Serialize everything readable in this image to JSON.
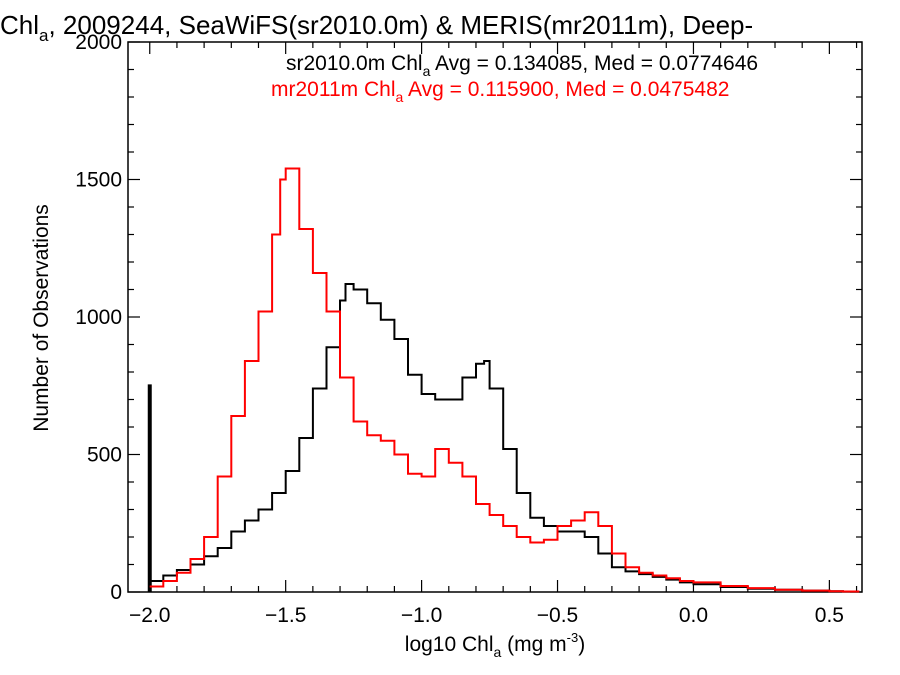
{
  "chart_data": {
    "type": "line",
    "title": {
      "pre": "Chl",
      "sub": "a",
      "post": ", 2009244, SeaWiFS(sr2010.0m) & MERIS(mr2011m), Deep-"
    },
    "xlabel": {
      "pre": "log10 Chl",
      "sub": "a",
      "post": " (mg m",
      "sup": "-3",
      "end": ")"
    },
    "ylabel": "Number of Observations",
    "xlim": [
      -2.08,
      0.62
    ],
    "ylim": [
      0,
      2000
    ],
    "xticks": [
      -2.0,
      -1.5,
      -1.0,
      -0.5,
      0.0,
      0.5
    ],
    "xtick_labels": [
      "−2.0",
      "−1.5",
      "−1.0",
      "−0.5",
      "0.0",
      "0.5"
    ],
    "yticks": [
      0,
      500,
      1000,
      1500,
      2000
    ],
    "ytick_labels": [
      "0",
      "500",
      "1000",
      "1500",
      "2000"
    ],
    "annotations": [
      {
        "pre": "sr2010.0m Chl",
        "sub": "a",
        "post": " Avg = 0.134085, Med = 0.0774646",
        "color": "#000000"
      },
      {
        "pre": "mr2011m Chl",
        "sub": "a",
        "post": " Avg = 0.115900, Med = 0.0475482",
        "color": "#ff0000"
      }
    ],
    "series": [
      {
        "color": "#000000",
        "style": "step",
        "spike": {
          "x": -2.0,
          "y": 755
        },
        "x": [
          -2.0,
          -1.95,
          -1.9,
          -1.85,
          -1.8,
          -1.75,
          -1.7,
          -1.65,
          -1.6,
          -1.55,
          -1.5,
          -1.45,
          -1.4,
          -1.35,
          -1.3,
          -1.28,
          -1.25,
          -1.2,
          -1.15,
          -1.1,
          -1.05,
          -1.0,
          -0.95,
          -0.9,
          -0.85,
          -0.8,
          -0.77,
          -0.75,
          -0.7,
          -0.65,
          -0.6,
          -0.55,
          -0.5,
          -0.45,
          -0.4,
          -0.35,
          -0.3,
          -0.25,
          -0.2,
          -0.15,
          -0.1,
          -0.05,
          0.0,
          0.1,
          0.2,
          0.3,
          0.4,
          0.5,
          0.55
        ],
        "y": [
          40,
          60,
          80,
          100,
          130,
          160,
          220,
          260,
          300,
          360,
          440,
          560,
          740,
          890,
          1060,
          1120,
          1100,
          1050,
          990,
          920,
          790,
          720,
          700,
          700,
          780,
          830,
          840,
          740,
          520,
          360,
          270,
          240,
          220,
          220,
          200,
          140,
          90,
          75,
          65,
          55,
          45,
          35,
          28,
          18,
          12,
          8,
          5,
          3,
          2
        ]
      },
      {
        "color": "#ff0000",
        "style": "step",
        "x": [
          -2.0,
          -1.95,
          -1.9,
          -1.85,
          -1.8,
          -1.75,
          -1.7,
          -1.65,
          -1.6,
          -1.55,
          -1.52,
          -1.5,
          -1.45,
          -1.4,
          -1.35,
          -1.3,
          -1.25,
          -1.2,
          -1.15,
          -1.1,
          -1.05,
          -1.0,
          -0.95,
          -0.9,
          -0.85,
          -0.8,
          -0.75,
          -0.7,
          -0.65,
          -0.6,
          -0.55,
          -0.5,
          -0.45,
          -0.4,
          -0.35,
          -0.3,
          -0.25,
          -0.2,
          -0.15,
          -0.1,
          -0.05,
          0.0,
          0.1,
          0.2,
          0.3,
          0.4,
          0.5,
          0.55
        ],
        "y": [
          20,
          40,
          70,
          120,
          200,
          420,
          640,
          840,
          1020,
          1300,
          1500,
          1540,
          1320,
          1160,
          1020,
          780,
          620,
          570,
          550,
          500,
          430,
          420,
          520,
          470,
          420,
          320,
          280,
          240,
          200,
          180,
          190,
          240,
          260,
          290,
          240,
          140,
          90,
          70,
          60,
          50,
          40,
          35,
          22,
          14,
          8,
          5,
          3,
          2
        ]
      }
    ]
  }
}
